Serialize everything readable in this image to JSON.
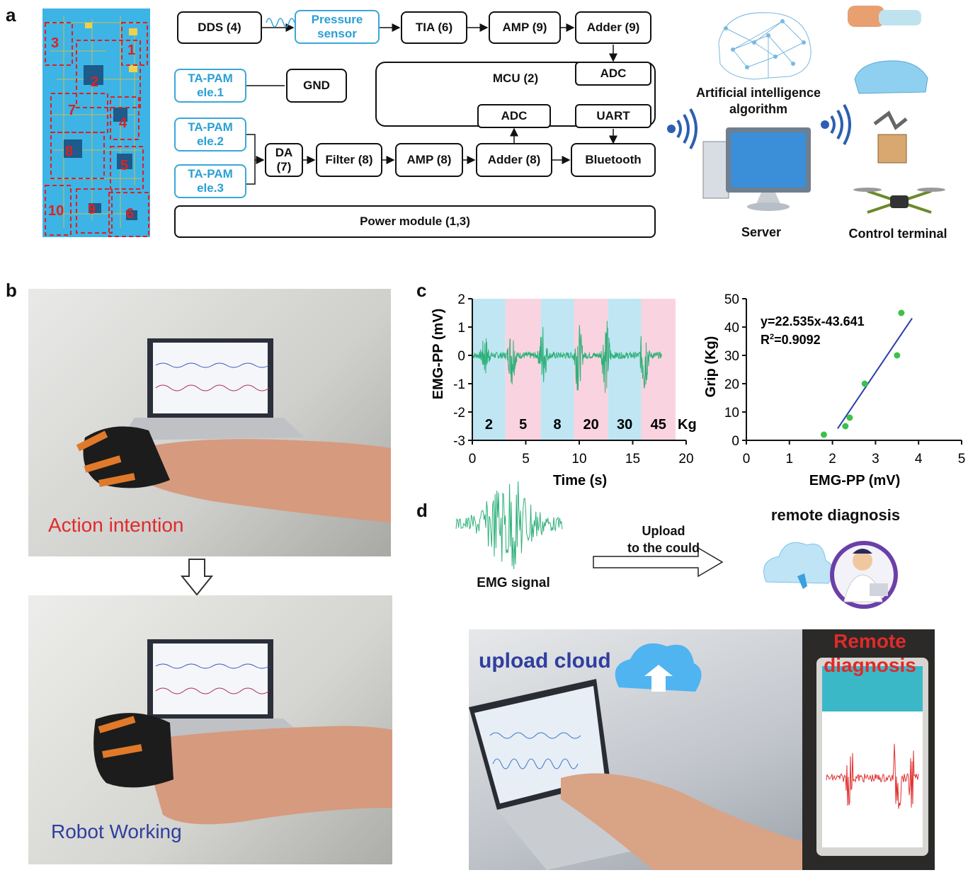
{
  "panels": {
    "a": "a",
    "b": "b",
    "c": "c",
    "d": "d"
  },
  "pcb": {
    "labels": [
      "3",
      "1",
      "2",
      "7",
      "4",
      "8",
      "5",
      "10",
      "9",
      "6"
    ]
  },
  "block": {
    "dds": "DDS (4)",
    "pressure_line1": "Pressure",
    "pressure_line2": "sensor",
    "tia": "TIA (6)",
    "amp9": "AMP (9)",
    "adder9": "Adder (9)",
    "ta1_l1": "TA-PAM",
    "ta1_l2": "ele.1",
    "gnd": "GND",
    "mcu": "MCU (2)",
    "adc_top": "ADC",
    "adc_bottom": "ADC",
    "uart": "UART",
    "ta2_l1": "TA-PAM",
    "ta2_l2": "ele.2",
    "ta3_l1": "TA-PAM",
    "ta3_l2": "ele.3",
    "da_l1": "DA",
    "da_l2": "(7)",
    "filter": "Filter (8)",
    "amp8": "AMP (8)",
    "adder8": "Adder (8)",
    "bluetooth": "Bluetooth",
    "power": "Power module (1,3)"
  },
  "system": {
    "ai_l1": "Artificial intelligence",
    "ai_l2": "algorithm",
    "server": "Server",
    "control": "Control terminal"
  },
  "photo_b": {
    "top_caption": "Action intention",
    "bottom_caption": "Robot Working"
  },
  "colors": {
    "blue_box": "#2a9fd6",
    "emg_green": "#2fb07a",
    "band_blue": "#bfe6f2",
    "band_pink": "#f9d3e0",
    "fit_line": "#2b3fa8",
    "points": "#3cc24a",
    "red_caption": "#e02a2a",
    "blue_caption": "#2f3f9e"
  },
  "chart_data": [
    {
      "type": "line",
      "ylabel": "EMG-PP (mV)",
      "xlabel": "Time (s)",
      "xlim": [
        0,
        20
      ],
      "ylim": [
        -3,
        2
      ],
      "xticks": [
        "0",
        "5",
        "10",
        "15",
        "20"
      ],
      "yticks": [
        "2",
        "1",
        "0",
        "-1",
        "-2",
        "-3"
      ],
      "band_labels": [
        "2",
        "5",
        "8",
        "20",
        "30",
        "45"
      ],
      "band_unit": "Kg",
      "bands": [
        [
          0,
          3.1
        ],
        [
          3.1,
          6.4
        ],
        [
          6.4,
          9.5
        ],
        [
          9.5,
          12.7
        ],
        [
          12.7,
          15.8
        ],
        [
          15.8,
          19
        ]
      ],
      "burst_times": [
        1.2,
        3.7,
        6.6,
        9.9,
        12.5,
        16.1
      ],
      "burst_peaks": [
        -1.3,
        -2.0,
        -2.1,
        -2.5,
        -2.7,
        -2.9
      ]
    },
    {
      "type": "scatter",
      "ylabel": "Grip (Kg)",
      "xlabel": "EMG-PP (mV)",
      "xlim": [
        0,
        5
      ],
      "ylim": [
        0,
        50
      ],
      "xticks": [
        "0",
        "1",
        "2",
        "3",
        "4",
        "5"
      ],
      "yticks": [
        "50",
        "40",
        "30",
        "20",
        "10",
        "0"
      ],
      "points": [
        [
          1.8,
          2
        ],
        [
          2.3,
          5
        ],
        [
          2.4,
          8
        ],
        [
          2.75,
          20
        ],
        [
          3.5,
          30
        ],
        [
          3.6,
          45
        ]
      ],
      "fit": {
        "slope": 22.535,
        "intercept": -43.641,
        "x_range": [
          2.12,
          3.85
        ]
      },
      "equation": "y=22.535x-43.641",
      "r2_prefix": "R",
      "r2_sup": "2",
      "r2_value": "=0.9092"
    }
  ],
  "panel_d": {
    "emg_label": "EMG signal",
    "upload_l1": "Upload",
    "upload_l2": "to the could",
    "remote": "remote diagnosis",
    "upload_cloud": "upload cloud",
    "remote_photo_l1": "Remote",
    "remote_photo_l2": "diagnosis"
  }
}
